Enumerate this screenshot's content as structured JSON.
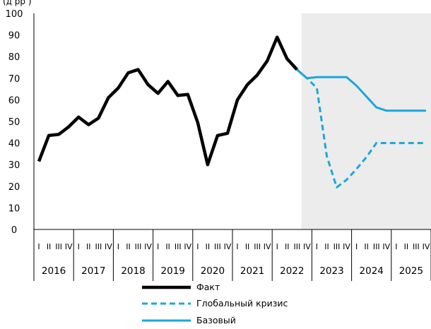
{
  "chart_data": {
    "type": "line",
    "title_fragment": "(д            рр   )",
    "ylim": [
      0,
      100
    ],
    "y_ticks": [
      0,
      10,
      20,
      30,
      40,
      50,
      60,
      70,
      80,
      90,
      100
    ],
    "years": [
      "2016",
      "2017",
      "2018",
      "2019",
      "2020",
      "2021",
      "2022",
      "2023",
      "2024",
      "2025"
    ],
    "quarter_labels": [
      "I",
      "II",
      "III",
      "IV"
    ],
    "forecast_shading": {
      "from": "2022 Q4",
      "color": "#ececec"
    },
    "x": [
      "2016 Q1",
      "2016 Q2",
      "2016 Q3",
      "2016 Q4",
      "2017 Q1",
      "2017 Q2",
      "2017 Q3",
      "2017 Q4",
      "2018 Q1",
      "2018 Q2",
      "2018 Q3",
      "2018 Q4",
      "2019 Q1",
      "2019 Q2",
      "2019 Q3",
      "2019 Q4",
      "2020 Q1",
      "2020 Q2",
      "2020 Q3",
      "2020 Q4",
      "2021 Q1",
      "2021 Q2",
      "2021 Q3",
      "2021 Q4",
      "2022 Q1",
      "2022 Q2",
      "2022 Q3",
      "2022 Q4",
      "2023 Q1",
      "2023 Q2",
      "2023 Q3",
      "2023 Q4",
      "2024 Q1",
      "2024 Q2",
      "2024 Q3",
      "2024 Q4",
      "2025 Q1",
      "2025 Q2",
      "2025 Q3",
      "2025 Q4"
    ],
    "series": [
      {
        "name": "Факт",
        "color": "#000000",
        "style": "solid",
        "values": [
          31.5,
          43.5,
          44,
          47.5,
          52,
          48.5,
          51.5,
          61,
          65.5,
          72.5,
          74,
          67,
          63,
          68.5,
          62,
          62.5,
          49.5,
          30,
          43.5,
          44.5,
          60,
          67,
          71.5,
          78,
          89,
          79,
          74,
          null,
          null,
          null,
          null,
          null,
          null,
          null,
          null,
          null,
          null,
          null,
          null,
          null
        ]
      },
      {
        "name": "Глобальный кризис",
        "color": "#1aa7dc",
        "style": "dashed",
        "values": [
          null,
          null,
          null,
          null,
          null,
          null,
          null,
          null,
          null,
          null,
          null,
          null,
          null,
          null,
          null,
          null,
          null,
          null,
          null,
          null,
          null,
          null,
          null,
          null,
          null,
          null,
          74,
          70,
          65.5,
          34,
          19.5,
          23,
          28,
          33.5,
          40,
          40,
          40,
          40,
          40,
          40
        ]
      },
      {
        "name": "Базовый",
        "color": "#1aa7dc",
        "style": "solid",
        "values": [
          null,
          null,
          null,
          null,
          null,
          null,
          null,
          null,
          null,
          null,
          null,
          null,
          null,
          null,
          null,
          null,
          null,
          null,
          null,
          null,
          null,
          null,
          null,
          null,
          null,
          null,
          74,
          70,
          70.5,
          70.5,
          70.5,
          70.5,
          66.5,
          61.5,
          56.5,
          55,
          55,
          55,
          55,
          55
        ]
      }
    ],
    "legend": [
      "Факт",
      "Глобальный кризис",
      "Базовый"
    ]
  }
}
